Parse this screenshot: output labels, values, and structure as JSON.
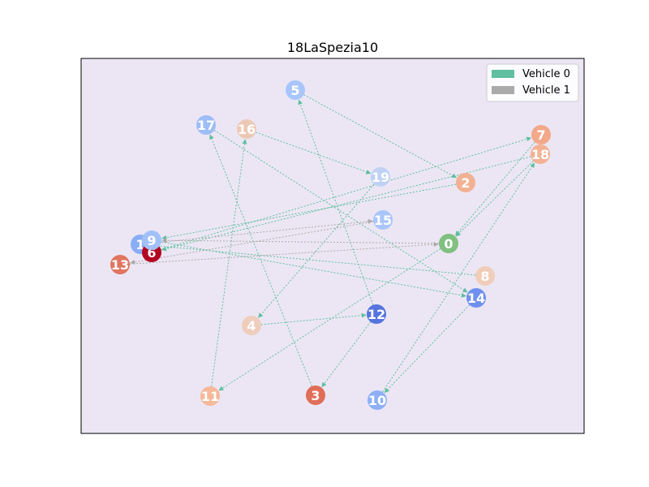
{
  "title": "18LaSpezia10",
  "colors": {
    "plot_background": "#ece6f4",
    "vehicle_0": "#5fbfa0",
    "vehicle_1": "#aaaaaa",
    "depot": "#80c080"
  },
  "legend": [
    {
      "label": "Vehicle 0",
      "color": "#5fbfa0"
    },
    {
      "label": "Vehicle 1",
      "color": "#aaaaaa"
    }
  ],
  "nodes": [
    {
      "id": "0",
      "color": "#80c080"
    },
    {
      "id": "1",
      "color": "#8aaef5"
    },
    {
      "id": "2",
      "color": "#f2b193"
    },
    {
      "id": "3",
      "color": "#e06e57"
    },
    {
      "id": "4",
      "color": "#eecdbc"
    },
    {
      "id": "5",
      "color": "#a8c6fb"
    },
    {
      "id": "6",
      "color": "#b3061f"
    },
    {
      "id": "7",
      "color": "#f3a88a"
    },
    {
      "id": "8",
      "color": "#efcdb9"
    },
    {
      "id": "9",
      "color": "#a2c1fa"
    },
    {
      "id": "10",
      "color": "#8db0f7"
    },
    {
      "id": "11",
      "color": "#f6b898"
    },
    {
      "id": "12",
      "color": "#5574df"
    },
    {
      "id": "13",
      "color": "#e07560"
    },
    {
      "id": "14",
      "color": "#6f90ee"
    },
    {
      "id": "15",
      "color": "#a9c5fb"
    },
    {
      "id": "16",
      "color": "#ecc9b5"
    },
    {
      "id": "17",
      "color": "#9dbdf9"
    },
    {
      "id": "18",
      "color": "#f4b294"
    },
    {
      "id": "19",
      "color": "#bfd2f5"
    }
  ],
  "routes": [
    {
      "vehicle": "Vehicle 0",
      "edges": [
        [
          "0",
          "11"
        ],
        [
          "11",
          "16"
        ],
        [
          "16",
          "19"
        ],
        [
          "19",
          "4"
        ],
        [
          "4",
          "12"
        ],
        [
          "12",
          "5"
        ],
        [
          "5",
          "2"
        ],
        [
          "2",
          "9"
        ],
        [
          "9",
          "14"
        ],
        [
          "14",
          "10"
        ],
        [
          "10",
          "18"
        ],
        [
          "18",
          "6"
        ],
        [
          "6",
          "7"
        ],
        [
          "7",
          "0"
        ],
        [
          "3",
          "17"
        ],
        [
          "17",
          "14"
        ],
        [
          "8",
          "1"
        ],
        [
          "12",
          "3"
        ],
        [
          "18",
          "0"
        ]
      ]
    },
    {
      "vehicle": "Vehicle 1",
      "edges": [
        [
          "1",
          "15"
        ],
        [
          "15",
          "13"
        ],
        [
          "13",
          "0"
        ],
        [
          "0",
          "9"
        ]
      ]
    }
  ]
}
